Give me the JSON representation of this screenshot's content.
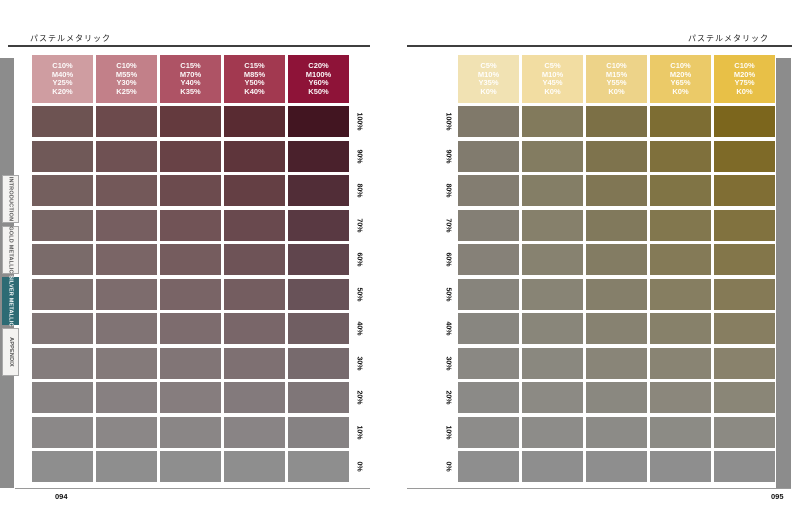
{
  "pages": [
    {
      "header": "パステルメタリック",
      "page_number": "094",
      "base_color": "#8e8e8e",
      "rows": [
        "100%",
        "90%",
        "80%",
        "70%",
        "60%",
        "50%",
        "40%",
        "30%",
        "20%",
        "10%",
        "0%"
      ],
      "labels_side": "right",
      "columns": [
        {
          "label": [
            "C10%",
            "M40%",
            "Y25%",
            "K20%"
          ],
          "header_color": "#cf9da1",
          "full_color": "#6d5352"
        },
        {
          "label": [
            "C10%",
            "M55%",
            "Y30%",
            "K25%"
          ],
          "header_color": "#c28089",
          "full_color": "#6c4a4c"
        },
        {
          "label": [
            "C15%",
            "M70%",
            "Y40%",
            "K35%"
          ],
          "header_color": "#ae5365",
          "full_color": "#643a3e"
        },
        {
          "label": [
            "C15%",
            "M85%",
            "Y50%",
            "K40%"
          ],
          "header_color": "#a23950",
          "full_color": "#592b32"
        },
        {
          "label": [
            "C20%",
            "M100%",
            "Y60%",
            "K50%"
          ],
          "header_color": "#8e1338",
          "full_color": "#421521"
        }
      ]
    },
    {
      "header": "パステルメタリック",
      "page_number": "095",
      "base_color": "#8e8e8e",
      "rows": [
        "100%",
        "90%",
        "80%",
        "70%",
        "60%",
        "50%",
        "40%",
        "30%",
        "20%",
        "10%",
        "0%"
      ],
      "labels_side": "left",
      "columns": [
        {
          "label": [
            "C5%",
            "M10%",
            "Y35%",
            "K0%"
          ],
          "header_color": "#f1e2b3",
          "full_color": "#80796a"
        },
        {
          "label": [
            "C5%",
            "M10%",
            "Y45%",
            "K0%"
          ],
          "header_color": "#f2dda2",
          "full_color": "#827a5c"
        },
        {
          "label": [
            "C10%",
            "M15%",
            "Y55%",
            "K0%"
          ],
          "header_color": "#edd389",
          "full_color": "#7c7046"
        },
        {
          "label": [
            "C10%",
            "M20%",
            "Y65%",
            "K0%"
          ],
          "header_color": "#ebca68",
          "full_color": "#7d6d33"
        },
        {
          "label": [
            "C10%",
            "M20%",
            "Y75%",
            "K0%"
          ],
          "header_color": "#e8c047",
          "full_color": "#7c661d"
        }
      ]
    }
  ],
  "sidebar": {
    "active_color": "#2d6b74",
    "tabs": [
      {
        "label": "INTRODUCTION",
        "active": false
      },
      {
        "label": "GOLD METALLIC",
        "active": false
      },
      {
        "label": "SILVER METALLIC",
        "active": true
      },
      {
        "label": "APPENDIX",
        "active": false
      }
    ]
  }
}
